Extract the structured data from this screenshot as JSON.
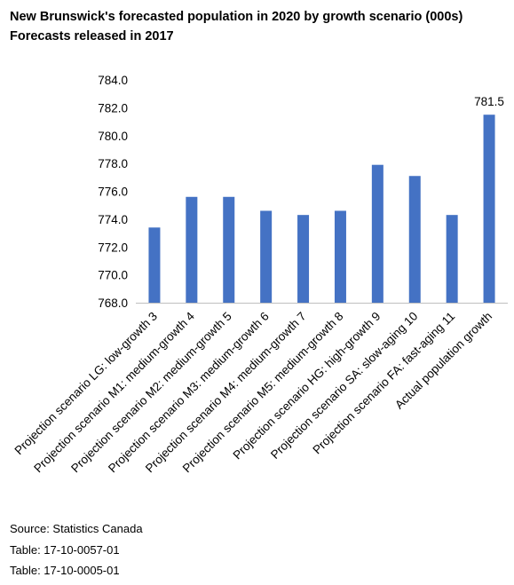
{
  "colors": {
    "bar": "#4472C4",
    "axis": "#BFBFBF",
    "text": "#000000",
    "background": "#FFFFFF"
  },
  "footer": {
    "source": "Source: Statistics Canada",
    "table1": "Table: 17-10-0057-01",
    "table2": "Table: 17-10-0005-01"
  },
  "chart_data": {
    "type": "bar",
    "title": "New Brunswick's forecasted population in 2020 by growth scenario (000s)",
    "subtitle": "Forecasts released in 2017",
    "xlabel": "",
    "ylabel": "",
    "categories": [
      "Projection scenario LG: low-growth 3",
      "Projection scenario M1: medium-growth 4",
      "Projection scenario M2: medium-growth 5",
      "Projection scenario M3: medium-growth 6",
      "Projection scenario M4: medium-growth 7",
      "Projection scenario M5: medium-growth 8",
      "Projection scenario HG: high-growth 9",
      "Projection scenario SA: slow-aging 10",
      "Projection scenario FA: fast-aging 11",
      "Actual population growth"
    ],
    "values": [
      773.4,
      775.6,
      775.6,
      774.6,
      774.3,
      774.6,
      777.9,
      777.1,
      774.3,
      781.5
    ],
    "ylim": [
      768.0,
      784.0
    ],
    "yticks": [
      "768.0",
      "770.0",
      "772.0",
      "774.0",
      "776.0",
      "778.0",
      "780.0",
      "782.0",
      "784.0"
    ],
    "data_labels": [
      {
        "index": 9,
        "text": "781.5"
      }
    ],
    "grid": false,
    "legend": "none"
  }
}
